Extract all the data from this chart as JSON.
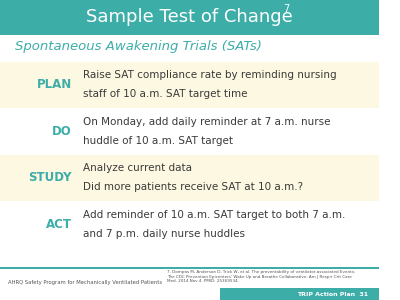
{
  "title": "Sample Test of Change",
  "title_superscript": "7",
  "subtitle": "Spontaneous Awakening Trials (SATs)",
  "header_bg": "#3dada8",
  "header_text_color": "#ffffff",
  "subtitle_color": "#3dada8",
  "body_bg": "#ffffff",
  "row_shaded_bg": "#fdf8e1",
  "row_plain_bg": "#ffffff",
  "label_color": "#3dada8",
  "text_color": "#3a3a3a",
  "footer_text_color": "#555555",
  "rows": [
    {
      "label": "PLAN",
      "text": "Raise SAT compliance rate by reminding nursing\nstaff of 10 a.m. SAT target time",
      "shaded": true
    },
    {
      "label": "DO",
      "text": "On Monday, add daily reminder at 7 a.m. nurse\nhuddle of 10 a.m. SAT target",
      "shaded": false
    },
    {
      "label": "STUDY",
      "text": "Analyze current data\nDid more patients receive SAT at 10 a.m.?",
      "shaded": true
    },
    {
      "label": "ACT",
      "text": "Add reminder of 10 a.m. SAT target to both 7 a.m.\nand 7 p.m. daily nurse huddles",
      "shaded": false
    }
  ],
  "footer_left": "AHRQ Safety Program for Mechanically Ventilated Patients",
  "footer_right": "TRIP Action Plan  31",
  "footer_ref": "7. Dompas M, Anderson D, Trick W, et al. The preventability of ventilator-associated Events:\nThe CDC Prevention Epicenters' Wake Up and Breathe Collaborative. Am J Respir Crit Care\nMed. 2014 Nov 4. PMID: 25369534."
}
